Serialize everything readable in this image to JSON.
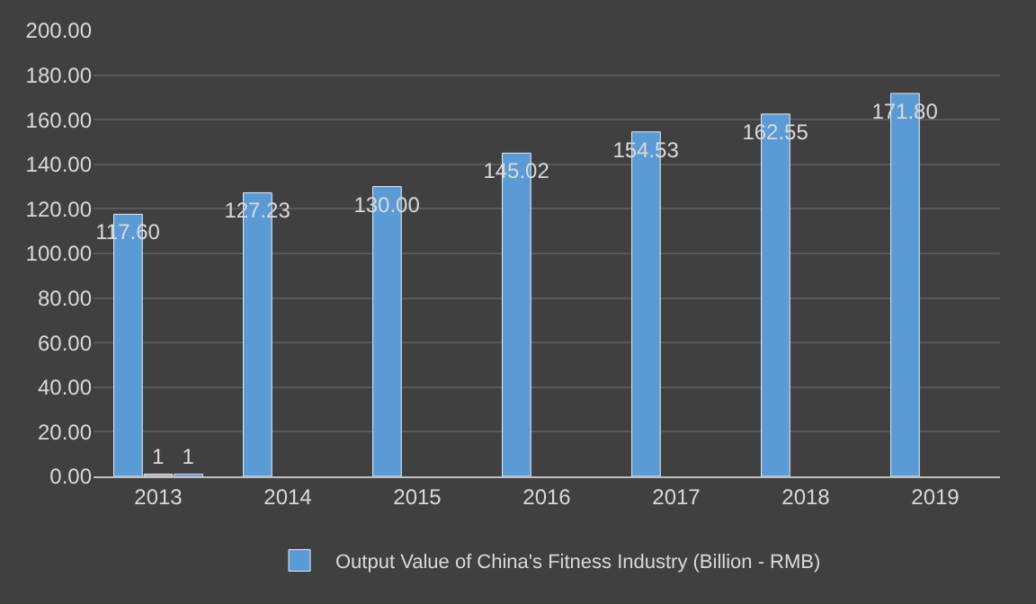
{
  "chart_data": {
    "type": "bar",
    "categories": [
      "2013",
      "2014",
      "2015",
      "2016",
      "2017",
      "2018",
      "2019"
    ],
    "series": [
      {
        "name": "Output Value of China's Fitness Industry (Billion - RMB)",
        "color": "#5b9bd5",
        "values": [
          117.6,
          127.23,
          130.0,
          145.02,
          154.53,
          162.55,
          171.8
        ],
        "value_labels": [
          "117.60",
          "127.23",
          "130.00",
          "145.02",
          "154.53",
          "162.55",
          "171.80"
        ]
      },
      {
        "color": "#a5a5a5",
        "values": [
          1,
          null,
          null,
          null,
          null,
          null,
          null
        ],
        "value_labels": [
          "1",
          null,
          null,
          null,
          null,
          null,
          null
        ]
      },
      {
        "color": "#4472c4",
        "values": [
          1,
          null,
          null,
          null,
          null,
          null,
          null
        ],
        "value_labels": [
          "1",
          null,
          null,
          null,
          null,
          null,
          null
        ]
      }
    ],
    "ylim": [
      0,
      200
    ],
    "yticks": [
      {
        "value": 0,
        "label": "0.00"
      },
      {
        "value": 20,
        "label": "20.00"
      },
      {
        "value": 40,
        "label": "40.00"
      },
      {
        "value": 60,
        "label": "60.00"
      },
      {
        "value": 80,
        "label": "80.00"
      },
      {
        "value": 100,
        "label": "100.00"
      },
      {
        "value": 120,
        "label": "120.00"
      },
      {
        "value": 140,
        "label": "140.00"
      },
      {
        "value": 160,
        "label": "160.00"
      },
      {
        "value": 180,
        "label": "180.00"
      },
      {
        "value": 200,
        "label": "200.00"
      }
    ],
    "grid": "y",
    "legend": "bottom"
  }
}
